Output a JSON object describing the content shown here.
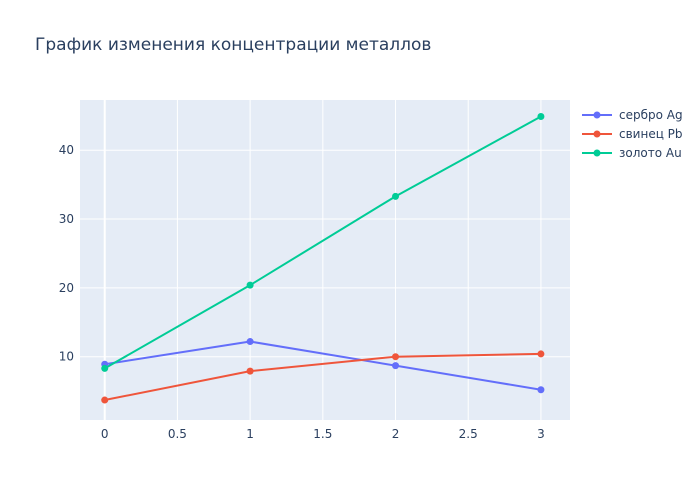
{
  "chart_data": {
    "type": "line",
    "title": "График изменения концентрации металлов",
    "xlabel": "",
    "ylabel": "",
    "xlim": [
      -0.17,
      3.2
    ],
    "ylim": [
      0.8,
      47.3
    ],
    "x_ticks": [
      0,
      0.5,
      1,
      1.5,
      2,
      2.5,
      3
    ],
    "x_tick_labels": [
      "0",
      "0.5",
      "1",
      "1.5",
      "2",
      "2.5",
      "3"
    ],
    "y_ticks": [
      10,
      20,
      30,
      40
    ],
    "y_tick_labels": [
      "10",
      "20",
      "30",
      "40"
    ],
    "grid": true,
    "legend_position": "top-right",
    "x": [
      0,
      1,
      2,
      3
    ],
    "series": [
      {
        "name": "сербро Ag",
        "color": "#636efa",
        "values": [
          8.9,
          12.2,
          8.7,
          5.2
        ]
      },
      {
        "name": "свинец Pb",
        "color": "#ef553b",
        "values": [
          3.7,
          7.9,
          10.0,
          10.4
        ]
      },
      {
        "name": "золото Au",
        "color": "#00cc96",
        "values": [
          8.3,
          20.4,
          33.3,
          44.9
        ]
      }
    ]
  }
}
